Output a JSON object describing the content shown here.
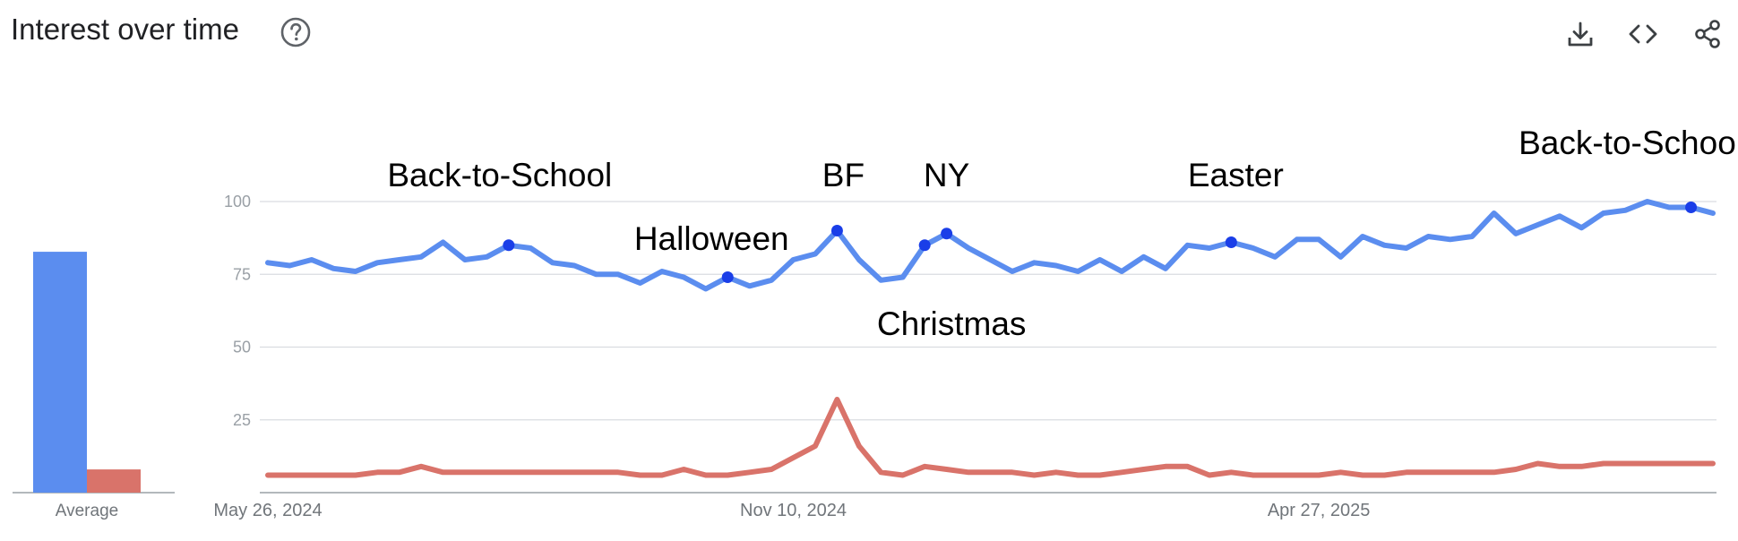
{
  "header": {
    "title": "Interest over time",
    "help_icon": "help-circle-icon",
    "actions": [
      {
        "name": "download",
        "icon": "download-icon"
      },
      {
        "name": "embed",
        "icon": "code-icon"
      },
      {
        "name": "share",
        "icon": "share-icon"
      }
    ]
  },
  "colors": {
    "series_1": "#5b8def",
    "series_2": "#d9736a",
    "annotation_marker": "#1a3ee8",
    "grid": "#dadce0",
    "axis_text": "#9aa0a6"
  },
  "chart_data": [
    {
      "type": "bar",
      "categories": [
        "Average"
      ],
      "series": [
        {
          "values": [
            83
          ]
        },
        {
          "values": [
            8
          ]
        }
      ],
      "ylim": [
        0,
        100
      ]
    },
    {
      "type": "line",
      "ylim": [
        0,
        100
      ],
      "y_ticks": [
        25,
        50,
        75,
        100
      ],
      "x_tick_labels": [
        "May 26, 2024",
        "Nov 10, 2024",
        "Apr 27, 2025"
      ],
      "x_tick_indices": [
        0,
        24,
        48
      ],
      "grid": true,
      "x": [
        "2024-05-26",
        "2024-06-02",
        "2024-06-09",
        "2024-06-16",
        "2024-06-23",
        "2024-06-30",
        "2024-07-07",
        "2024-07-14",
        "2024-07-21",
        "2024-07-28",
        "2024-08-04",
        "2024-08-11",
        "2024-08-18",
        "2024-08-25",
        "2024-09-01",
        "2024-09-08",
        "2024-09-15",
        "2024-09-22",
        "2024-09-29",
        "2024-10-06",
        "2024-10-13",
        "2024-10-20",
        "2024-10-27",
        "2024-11-03",
        "2024-11-10",
        "2024-11-17",
        "2024-11-24",
        "2024-12-01",
        "2024-12-08",
        "2024-12-15",
        "2024-12-22",
        "2024-12-29",
        "2025-01-05",
        "2025-01-12",
        "2025-01-19",
        "2025-01-26",
        "2025-02-02",
        "2025-02-09",
        "2025-02-16",
        "2025-02-23",
        "2025-03-02",
        "2025-03-09",
        "2025-03-16",
        "2025-03-23",
        "2025-03-30",
        "2025-04-06",
        "2025-04-13",
        "2025-04-20",
        "2025-04-27",
        "2025-05-04",
        "2025-05-11",
        "2025-05-18",
        "2025-05-25",
        "2025-06-01",
        "2025-06-08",
        "2025-06-15",
        "2025-06-22",
        "2025-06-29",
        "2025-07-06",
        "2025-07-13",
        "2025-07-20",
        "2025-07-27",
        "2025-08-03",
        "2025-08-10",
        "2025-08-17",
        "2025-08-24",
        "2025-08-31"
      ],
      "series": [
        {
          "values": [
            79,
            78,
            80,
            77,
            76,
            79,
            80,
            81,
            86,
            80,
            81,
            85,
            84,
            79,
            78,
            75,
            75,
            72,
            76,
            74,
            70,
            74,
            71,
            73,
            80,
            82,
            90,
            80,
            73,
            74,
            85,
            89,
            84,
            80,
            76,
            79,
            78,
            76,
            80,
            76,
            81,
            77,
            85,
            84,
            86,
            84,
            81,
            87,
            87,
            81,
            88,
            85,
            84,
            88,
            87,
            88,
            96,
            89,
            92,
            95,
            91,
            96,
            97,
            100,
            98,
            98,
            96
          ]
        },
        {
          "values": [
            6,
            6,
            6,
            6,
            6,
            7,
            7,
            9,
            7,
            7,
            7,
            7,
            7,
            7,
            7,
            7,
            7,
            6,
            6,
            8,
            6,
            6,
            7,
            8,
            12,
            16,
            32,
            16,
            7,
            6,
            9,
            8,
            7,
            7,
            7,
            6,
            7,
            6,
            6,
            7,
            8,
            9,
            9,
            6,
            7,
            6,
            6,
            6,
            6,
            7,
            6,
            6,
            7,
            7,
            7,
            7,
            7,
            8,
            10,
            9,
            9,
            10,
            10,
            10,
            10,
            10,
            10
          ]
        }
      ],
      "annotations": [
        {
          "text": "Back-to-School",
          "index": 11
        },
        {
          "text": "Halloween",
          "index": 21
        },
        {
          "text": "BF",
          "index": 26
        },
        {
          "text": "Christmas",
          "index": 30
        },
        {
          "text": "NY",
          "index": 31
        },
        {
          "text": "Easter",
          "index": 44
        },
        {
          "text": "Back-to-School",
          "index": 65
        }
      ]
    }
  ]
}
